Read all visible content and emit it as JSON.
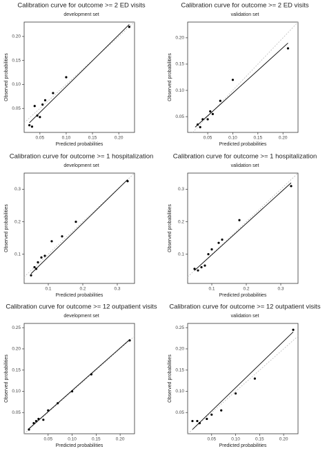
{
  "chart_data": [
    {
      "type": "scatter",
      "title": "Calibration curve for outcome >= 2 ED visits",
      "subtitle": "development set",
      "x_label": "Predicted probabilities",
      "y_label": "Observed probabilities",
      "x": [
        0.03,
        0.035,
        0.04,
        0.045,
        0.05,
        0.055,
        0.06,
        0.075,
        0.1,
        0.22
      ],
      "values": [
        0.015,
        0.012,
        0.055,
        0.035,
        0.032,
        0.058,
        0.067,
        0.082,
        0.115,
        0.22
      ],
      "fit_line": {
        "x": [
          0.03,
          0.22
        ],
        "values": [
          0.02,
          0.225
        ]
      },
      "xlim": [
        0.02,
        0.23
      ],
      "ylim": [
        0,
        0.23
      ],
      "xticks": [
        {
          "value": 0.05,
          "label": "0.05"
        },
        {
          "value": 0.1,
          "label": "0.10"
        },
        {
          "value": 0.15,
          "label": "0.15"
        },
        {
          "value": 0.2,
          "label": "0.20"
        }
      ],
      "yticks": [
        {
          "value": 0.05,
          "label": "0.05"
        },
        {
          "value": 0.1,
          "label": "0.10"
        },
        {
          "value": 0.15,
          "label": "0.15"
        },
        {
          "value": 0.2,
          "label": "0.20"
        }
      ],
      "color": "#000000"
    },
    {
      "type": "scatter",
      "title": "Calibration curve for outcome >= 2 ED visits",
      "subtitle": "validation set",
      "x_label": "Predicted probabilities",
      "y_label": "Observed probabilities",
      "x": [
        0.03,
        0.035,
        0.04,
        0.05,
        0.055,
        0.06,
        0.075,
        0.1,
        0.21
      ],
      "values": [
        0.035,
        0.03,
        0.045,
        0.045,
        0.06,
        0.055,
        0.08,
        0.12,
        0.18
      ],
      "fit_line": {
        "x": [
          0.025,
          0.21
        ],
        "values": [
          0.03,
          0.19
        ]
      },
      "xlim": [
        0.01,
        0.23
      ],
      "ylim": [
        0.02,
        0.23
      ],
      "xticks": [
        {
          "value": 0.05,
          "label": "0.05"
        },
        {
          "value": 0.1,
          "label": "0.10"
        },
        {
          "value": 0.15,
          "label": "0.15"
        },
        {
          "value": 0.2,
          "label": "0.20"
        }
      ],
      "yticks": [
        {
          "value": 0.05,
          "label": "0.05"
        },
        {
          "value": 0.1,
          "label": "0.10"
        },
        {
          "value": 0.15,
          "label": "0.15"
        },
        {
          "value": 0.2,
          "label": "0.20"
        }
      ],
      "color": "#000000"
    },
    {
      "type": "scatter",
      "title": "Calibration curve for outcome >= 1 hospitalization",
      "subtitle": "development set",
      "x_label": "Predicted probabilities",
      "y_label": "Observed probabilities",
      "x": [
        0.05,
        0.06,
        0.065,
        0.07,
        0.08,
        0.09,
        0.11,
        0.14,
        0.18,
        0.33
      ],
      "values": [
        0.035,
        0.06,
        0.055,
        0.075,
        0.09,
        0.095,
        0.14,
        0.155,
        0.2,
        0.325
      ],
      "fit_line": {
        "x": [
          0.05,
          0.33
        ],
        "values": [
          0.04,
          0.33
        ]
      },
      "xlim": [
        0.03,
        0.35
      ],
      "ylim": [
        0.01,
        0.35
      ],
      "xticks": [
        0.1,
        0.2,
        0.3
      ],
      "yticks": [
        0.1,
        0.2,
        0.3
      ],
      "color": "#000000"
    },
    {
      "type": "scatter",
      "title": "Calibration curve for outcome >= 1 hospitalization",
      "subtitle": "validation set",
      "x_label": "Predicted probabilities",
      "y_label": "Observed probabilities",
      "x": [
        0.05,
        0.06,
        0.07,
        0.08,
        0.09,
        0.1,
        0.12,
        0.13,
        0.18,
        0.33
      ],
      "values": [
        0.055,
        0.05,
        0.06,
        0.065,
        0.1,
        0.115,
        0.135,
        0.145,
        0.205,
        0.31
      ],
      "fit_line": {
        "x": [
          0.05,
          0.33
        ],
        "values": [
          0.05,
          0.32
        ]
      },
      "xlim": [
        0.03,
        0.35
      ],
      "ylim": [
        0.01,
        0.35
      ],
      "xticks": [
        0.1,
        0.2,
        0.3
      ],
      "yticks": [
        0.1,
        0.2,
        0.3
      ],
      "color": "#000000"
    },
    {
      "type": "scatter",
      "title": "Calibration curve for outcome >= 12 outpatient visits",
      "subtitle": "development set",
      "x_label": "Predicted probabilities",
      "y_label": "Observed probabilities",
      "x": [
        0.01,
        0.02,
        0.025,
        0.03,
        0.04,
        0.05,
        0.07,
        0.1,
        0.14,
        0.22
      ],
      "values": [
        0.01,
        0.025,
        0.03,
        0.035,
        0.033,
        0.055,
        0.072,
        0.1,
        0.14,
        0.22
      ],
      "fit_line": {
        "x": [
          0.01,
          0.22
        ],
        "values": [
          0.012,
          0.222
        ]
      },
      "xlim": [
        0,
        0.23
      ],
      "ylim": [
        0,
        0.26
      ],
      "xticks": [
        {
          "value": 0.05,
          "label": "0.05"
        },
        {
          "value": 0.1,
          "label": "0.10"
        },
        {
          "value": 0.15,
          "label": "0.15"
        },
        {
          "value": 0.2,
          "label": "0.20"
        }
      ],
      "yticks": [
        {
          "value": 0.05,
          "label": "0.05"
        },
        {
          "value": 0.1,
          "label": "0.10"
        },
        {
          "value": 0.15,
          "label": "0.15"
        },
        {
          "value": 0.2,
          "label": "0.20"
        },
        {
          "value": 0.25,
          "label": "0.25"
        }
      ],
      "color": "#000000"
    },
    {
      "type": "scatter",
      "title": "Calibration curve for outcome >= 12 outpatient visits",
      "subtitle": "validation set",
      "x_label": "Predicted probabilities",
      "y_label": "Observed probabilities",
      "x": [
        0.01,
        0.02,
        0.025,
        0.04,
        0.05,
        0.07,
        0.1,
        0.14,
        0.22
      ],
      "values": [
        0.03,
        0.03,
        0.025,
        0.035,
        0.045,
        0.055,
        0.095,
        0.13,
        0.245
      ],
      "fit_line": {
        "x": [
          0.01,
          0.22
        ],
        "values": [
          0.01,
          0.24
        ]
      },
      "xlim": [
        0,
        0.23
      ],
      "ylim": [
        0,
        0.26
      ],
      "xticks": [
        {
          "value": 0.05,
          "label": "0.05"
        },
        {
          "value": 0.1,
          "label": "0.10"
        },
        {
          "value": 0.15,
          "label": "0.15"
        },
        {
          "value": 0.2,
          "label": "0.20"
        }
      ],
      "yticks": [
        {
          "value": 0.05,
          "label": "0.05"
        },
        {
          "value": 0.1,
          "label": "0.10"
        },
        {
          "value": 0.15,
          "label": "0.15"
        },
        {
          "value": 0.2,
          "label": "0.20"
        },
        {
          "value": 0.25,
          "label": "0.25"
        }
      ],
      "color": "#000000"
    }
  ]
}
